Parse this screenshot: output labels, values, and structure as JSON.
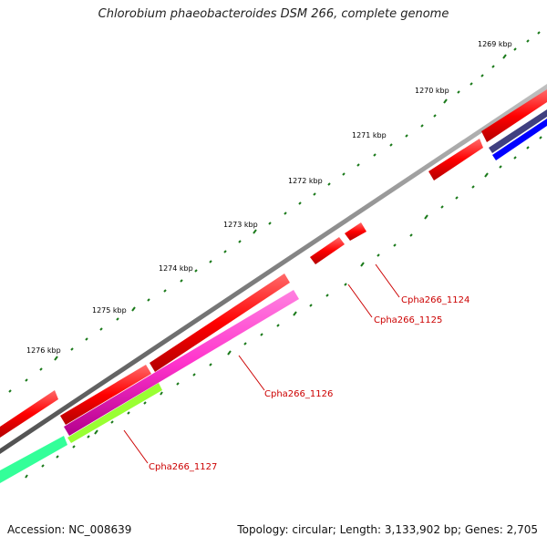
{
  "title": "Chlorobium phaeobacteroides DSM 266, complete genome",
  "footer": {
    "accession": "Accession: NC_008639",
    "topology": "Topology: circular; Length: 3,133,902 bp; Genes: 2,705"
  },
  "tick_labels": [
    "1269 kbp",
    "1270 kbp",
    "1271 kbp",
    "1272 kbp",
    "1273 kbp",
    "1274 kbp",
    "1275 kbp",
    "1276 kbp"
  ],
  "gene_labels": [
    "Cpha266_1124",
    "Cpha266_1125",
    "Cpha266_1126",
    "Cpha266_1127"
  ],
  "colors": {
    "backbone": "#808080",
    "cds_strand": "#ff0000",
    "magenta": "#ff33cc",
    "yellowgreen": "#99ff33",
    "teal": "#33ff99",
    "blue": "#0000ff",
    "purple": "#404080",
    "tick": "#1a7a1a",
    "label": "#cc0000"
  }
}
